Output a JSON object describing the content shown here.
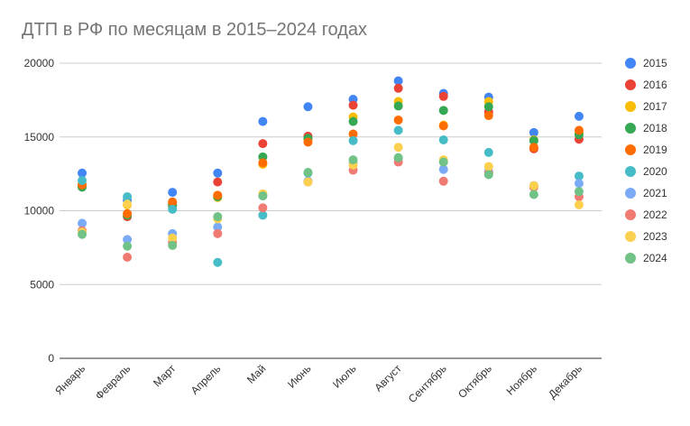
{
  "chart_data": {
    "type": "scatter",
    "title": "ДТП в РФ по месяцам в 2015–2024 годах",
    "xlabel": "",
    "ylabel": "",
    "ylim": [
      0,
      20000
    ],
    "yticks": [
      "0",
      "5000",
      "10000",
      "15000",
      "20000"
    ],
    "grid": true,
    "legend_position": "right",
    "categories": [
      "Январь",
      "Февраль",
      "Март",
      "Апрель",
      "Май",
      "Июнь",
      "Июль",
      "Август",
      "Сентябрь",
      "Октябрь",
      "Ноябрь",
      "Декабрь"
    ],
    "series": [
      {
        "name": "2015",
        "color": "#4285F4",
        "values": [
          12550,
          10700,
          11250,
          12550,
          16050,
          17050,
          17550,
          18800,
          17950,
          17700,
          15300,
          16400
        ]
      },
      {
        "name": "2016",
        "color": "#EA4335",
        "values": [
          11750,
          9600,
          10500,
          11950,
          14550,
          15050,
          17150,
          18300,
          17750,
          16700,
          14200,
          14850
        ]
      },
      {
        "name": "2017",
        "color": "#FBBC04",
        "values": [
          11800,
          10400,
          10300,
          10900,
          13150,
          14850,
          16350,
          17400,
          15800,
          17400,
          14800,
          15300
        ]
      },
      {
        "name": "2018",
        "color": "#34A853",
        "values": [
          11600,
          9700,
          10350,
          10950,
          13650,
          14900,
          16050,
          17100,
          16800,
          17050,
          14750,
          15150
        ]
      },
      {
        "name": "2019",
        "color": "#FF6D01",
        "values": [
          11750,
          9800,
          10600,
          11050,
          13250,
          14650,
          15200,
          16150,
          15750,
          16450,
          14300,
          15450
        ]
      },
      {
        "name": "2020",
        "color": "#46BDC6",
        "values": [
          12050,
          10950,
          10100,
          6500,
          9700,
          12550,
          14750,
          15450,
          14800,
          13950,
          11650,
          12350
        ]
      },
      {
        "name": "2021",
        "color": "#7BAAF7",
        "values": [
          9150,
          8050,
          8450,
          8900,
          11050,
          12000,
          13200,
          13550,
          12800,
          12650,
          11700,
          11850
        ]
      },
      {
        "name": "2022",
        "color": "#F07B72",
        "values": [
          8650,
          6850,
          7850,
          8450,
          10200,
          11950,
          12750,
          13300,
          12000,
          12550,
          11600,
          10950
        ]
      },
      {
        "name": "2023",
        "color": "#FCD04F",
        "values": [
          8550,
          10450,
          8150,
          9450,
          11150,
          11950,
          13100,
          14300,
          13450,
          13000,
          11700,
          10400
        ]
      },
      {
        "name": "2024",
        "color": "#71C287",
        "values": [
          8400,
          7600,
          7650,
          9600,
          11000,
          12600,
          13450,
          13600,
          13300,
          12450,
          11100,
          11300
        ]
      }
    ]
  }
}
